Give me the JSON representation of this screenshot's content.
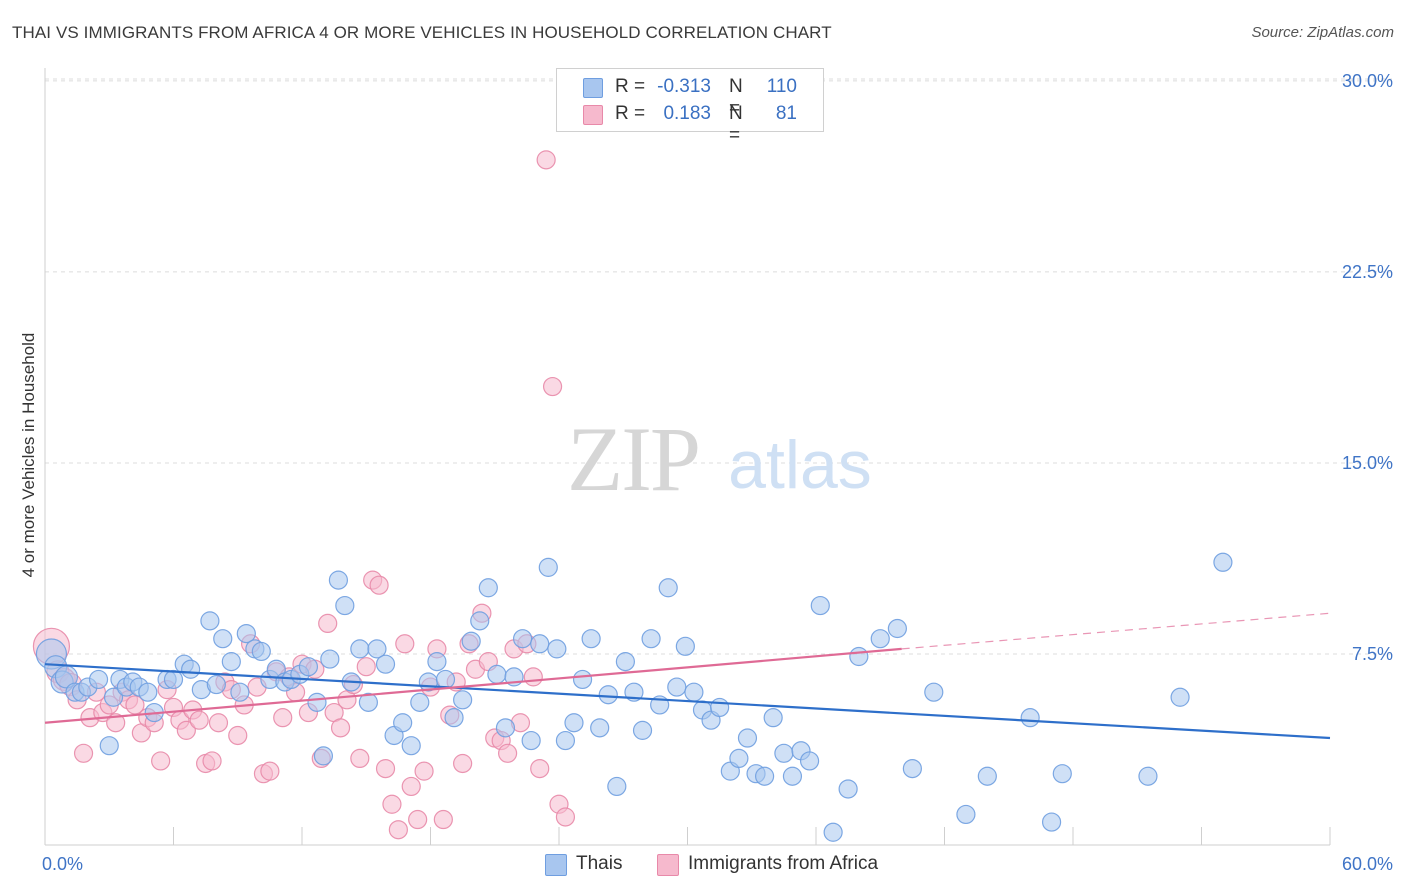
{
  "title": "THAI VS IMMIGRANTS FROM AFRICA 4 OR MORE VEHICLES IN HOUSEHOLD CORRELATION CHART",
  "source": "Source: ZipAtlas.com",
  "watermark": {
    "zip": "ZIP",
    "atlas": "atlas"
  },
  "legend_top": [
    {
      "r_label": "R =",
      "r_value": "-0.313",
      "n_label": "N =",
      "n_value": "110",
      "color": "#a8c6ef",
      "edge": "#6f9ee0"
    },
    {
      "r_label": "R =",
      "r_value": "0.183",
      "n_label": "N =",
      "n_value": "81",
      "color": "#f6b9cd",
      "edge": "#e889a9"
    }
  ],
  "chart_data": {
    "type": "scatter",
    "title": "THAI VS IMMIGRANTS FROM AFRICA 4 OR MORE VEHICLES IN HOUSEHOLD CORRELATION CHART",
    "xlabel": "",
    "ylabel": "4 or more Vehicles in Household",
    "xlim": [
      0,
      60
    ],
    "ylim": [
      0,
      31.5
    ],
    "x_tick_labels": [
      "0.0%",
      "60.0%"
    ],
    "y_ticks": [
      7.5,
      15.0,
      22.5,
      30.0
    ],
    "y_tick_labels": [
      "7.5%",
      "15.0%",
      "22.5%",
      "30.0%"
    ],
    "grid": true,
    "legend_position": "bottom",
    "series": [
      {
        "name": "Thais",
        "color": "#6f9ee0",
        "fill": "#a8c6ef",
        "line_color": "#2e6fca",
        "trend": {
          "x0": 0,
          "y0": 7.1,
          "x1": 60,
          "y1": 4.2
        },
        "points": [
          [
            0.3,
            7.5
          ],
          [
            0.5,
            7.0
          ],
          [
            0.8,
            6.4
          ],
          [
            1.0,
            6.6
          ],
          [
            1.4,
            6.0
          ],
          [
            1.7,
            6.0
          ],
          [
            2.0,
            6.2
          ],
          [
            2.5,
            6.5
          ],
          [
            3.0,
            3.9
          ],
          [
            3.2,
            5.8
          ],
          [
            3.5,
            6.5
          ],
          [
            3.8,
            6.2
          ],
          [
            4.1,
            6.4
          ],
          [
            4.4,
            6.2
          ],
          [
            4.8,
            6.0
          ],
          [
            5.1,
            5.2
          ],
          [
            5.7,
            6.5
          ],
          [
            6.0,
            6.5
          ],
          [
            6.5,
            7.1
          ],
          [
            6.8,
            6.9
          ],
          [
            7.3,
            6.1
          ],
          [
            7.7,
            8.8
          ],
          [
            8.0,
            6.3
          ],
          [
            8.3,
            8.1
          ],
          [
            8.7,
            7.2
          ],
          [
            9.1,
            6.0
          ],
          [
            9.4,
            8.3
          ],
          [
            9.8,
            7.7
          ],
          [
            10.1,
            7.6
          ],
          [
            10.5,
            6.5
          ],
          [
            10.8,
            6.9
          ],
          [
            11.2,
            6.4
          ],
          [
            11.5,
            6.5
          ],
          [
            11.9,
            6.7
          ],
          [
            12.3,
            7.0
          ],
          [
            12.7,
            5.6
          ],
          [
            13.0,
            3.5
          ],
          [
            13.3,
            7.3
          ],
          [
            13.7,
            10.4
          ],
          [
            14.0,
            9.4
          ],
          [
            14.3,
            6.4
          ],
          [
            14.7,
            7.7
          ],
          [
            15.1,
            5.6
          ],
          [
            15.5,
            7.7
          ],
          [
            15.9,
            7.1
          ],
          [
            16.3,
            4.3
          ],
          [
            16.7,
            4.8
          ],
          [
            17.1,
            3.9
          ],
          [
            17.5,
            5.6
          ],
          [
            17.9,
            6.4
          ],
          [
            18.3,
            7.2
          ],
          [
            18.7,
            6.5
          ],
          [
            19.1,
            5.0
          ],
          [
            19.5,
            5.7
          ],
          [
            19.9,
            8.0
          ],
          [
            20.3,
            8.8
          ],
          [
            20.7,
            10.1
          ],
          [
            21.1,
            6.7
          ],
          [
            21.5,
            4.6
          ],
          [
            21.9,
            6.6
          ],
          [
            22.3,
            8.1
          ],
          [
            22.7,
            4.1
          ],
          [
            23.1,
            7.9
          ],
          [
            23.5,
            10.9
          ],
          [
            23.9,
            7.7
          ],
          [
            24.3,
            4.1
          ],
          [
            24.7,
            4.8
          ],
          [
            25.1,
            6.5
          ],
          [
            25.5,
            8.1
          ],
          [
            25.9,
            4.6
          ],
          [
            26.3,
            5.9
          ],
          [
            26.7,
            2.3
          ],
          [
            27.1,
            7.2
          ],
          [
            27.5,
            6.0
          ],
          [
            27.9,
            4.5
          ],
          [
            28.3,
            8.1
          ],
          [
            28.7,
            5.5
          ],
          [
            29.1,
            10.1
          ],
          [
            29.5,
            6.2
          ],
          [
            29.9,
            7.8
          ],
          [
            30.3,
            6.0
          ],
          [
            30.7,
            5.3
          ],
          [
            31.1,
            4.9
          ],
          [
            31.5,
            5.4
          ],
          [
            32.0,
            2.9
          ],
          [
            32.4,
            3.4
          ],
          [
            32.8,
            4.2
          ],
          [
            33.2,
            2.8
          ],
          [
            33.6,
            2.7
          ],
          [
            34.0,
            5.0
          ],
          [
            34.5,
            3.6
          ],
          [
            34.9,
            2.7
          ],
          [
            35.3,
            3.7
          ],
          [
            35.7,
            3.3
          ],
          [
            36.2,
            9.4
          ],
          [
            36.8,
            0.5
          ],
          [
            37.5,
            2.2
          ],
          [
            38.0,
            7.4
          ],
          [
            39.0,
            8.1
          ],
          [
            39.8,
            8.5
          ],
          [
            40.5,
            3.0
          ],
          [
            41.5,
            6.0
          ],
          [
            43.0,
            1.2
          ],
          [
            44.0,
            2.7
          ],
          [
            46.0,
            5.0
          ],
          [
            47.0,
            0.9
          ],
          [
            47.5,
            2.8
          ],
          [
            51.5,
            2.7
          ],
          [
            53.0,
            5.8
          ],
          [
            55.0,
            11.1
          ]
        ]
      },
      {
        "name": "Immigrants from Africa",
        "color": "#e889a9",
        "fill": "#f6b9cd",
        "line_color": "#df6a95",
        "trend": {
          "x0": 0,
          "y0": 4.8,
          "x1": 40,
          "y1": 7.7
        },
        "trend_dashed": {
          "x0": 40,
          "y0": 7.7,
          "x1": 60,
          "y1": 9.1
        },
        "points": [
          [
            0.3,
            7.8
          ],
          [
            0.6,
            6.8
          ],
          [
            0.9,
            6.5
          ],
          [
            1.2,
            6.3
          ],
          [
            1.5,
            5.7
          ],
          [
            1.8,
            3.6
          ],
          [
            2.1,
            5.0
          ],
          [
            2.4,
            6.0
          ],
          [
            2.7,
            5.2
          ],
          [
            3.0,
            5.5
          ],
          [
            3.3,
            4.8
          ],
          [
            3.6,
            6.0
          ],
          [
            3.9,
            5.7
          ],
          [
            4.2,
            5.5
          ],
          [
            4.5,
            4.4
          ],
          [
            4.8,
            5.0
          ],
          [
            5.1,
            4.8
          ],
          [
            5.4,
            3.3
          ],
          [
            5.7,
            6.1
          ],
          [
            6.0,
            5.4
          ],
          [
            6.3,
            4.9
          ],
          [
            6.6,
            4.5
          ],
          [
            6.9,
            5.3
          ],
          [
            7.2,
            4.9
          ],
          [
            7.5,
            3.2
          ],
          [
            7.8,
            3.3
          ],
          [
            8.1,
            4.8
          ],
          [
            8.4,
            6.4
          ],
          [
            8.7,
            6.1
          ],
          [
            9.0,
            4.3
          ],
          [
            9.3,
            5.5
          ],
          [
            9.6,
            7.9
          ],
          [
            9.9,
            6.2
          ],
          [
            10.2,
            2.8
          ],
          [
            10.5,
            2.9
          ],
          [
            10.8,
            6.8
          ],
          [
            11.1,
            5.0
          ],
          [
            11.4,
            6.6
          ],
          [
            11.7,
            6.0
          ],
          [
            12.0,
            7.1
          ],
          [
            12.3,
            5.2
          ],
          [
            12.6,
            6.9
          ],
          [
            12.9,
            3.4
          ],
          [
            13.2,
            8.7
          ],
          [
            13.5,
            5.2
          ],
          [
            13.8,
            4.6
          ],
          [
            14.1,
            5.7
          ],
          [
            14.4,
            6.3
          ],
          [
            14.7,
            3.4
          ],
          [
            15.0,
            7.0
          ],
          [
            15.3,
            10.4
          ],
          [
            15.6,
            10.2
          ],
          [
            15.9,
            3.0
          ],
          [
            16.2,
            1.6
          ],
          [
            16.5,
            0.6
          ],
          [
            16.8,
            7.9
          ],
          [
            17.1,
            2.3
          ],
          [
            17.4,
            1.0
          ],
          [
            17.7,
            2.9
          ],
          [
            18.0,
            6.2
          ],
          [
            18.3,
            7.7
          ],
          [
            18.6,
            1.0
          ],
          [
            18.9,
            5.1
          ],
          [
            19.2,
            6.4
          ],
          [
            19.5,
            3.2
          ],
          [
            19.8,
            7.9
          ],
          [
            20.1,
            6.9
          ],
          [
            20.4,
            9.1
          ],
          [
            20.7,
            7.2
          ],
          [
            21.0,
            4.2
          ],
          [
            21.3,
            4.1
          ],
          [
            21.6,
            3.6
          ],
          [
            21.9,
            7.7
          ],
          [
            22.2,
            4.8
          ],
          [
            22.5,
            7.9
          ],
          [
            22.8,
            6.6
          ],
          [
            23.1,
            3.0
          ],
          [
            23.4,
            26.9
          ],
          [
            23.7,
            18.0
          ],
          [
            24.0,
            1.6
          ],
          [
            24.3,
            1.1
          ]
        ]
      }
    ]
  },
  "legend_bottom": [
    {
      "label": "Thais",
      "color": "#a8c6ef",
      "edge": "#6f9ee0"
    },
    {
      "label": "Immigrants from Africa",
      "color": "#f6b9cd",
      "edge": "#e889a9"
    }
  ]
}
